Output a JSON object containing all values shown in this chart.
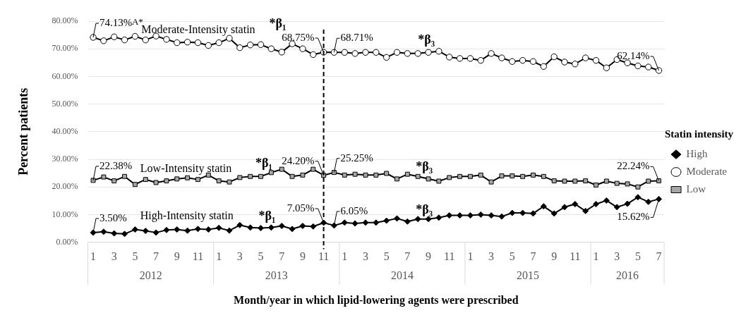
{
  "chart_data": {
    "type": "line",
    "xlabel": "Month/year in which lipid-lowering agents were prescribed",
    "ylabel": "Percent patients",
    "legend_title": "Statin intensity",
    "x": [
      "2012-01",
      "2012-02",
      "2012-03",
      "2012-04",
      "2012-05",
      "2012-06",
      "2012-07",
      "2012-08",
      "2012-09",
      "2012-10",
      "2012-11",
      "2012-12",
      "2013-01",
      "2013-02",
      "2013-03",
      "2013-04",
      "2013-05",
      "2013-06",
      "2013-07",
      "2013-08",
      "2013-09",
      "2013-10",
      "2013-11",
      "2013-12",
      "2014-01",
      "2014-02",
      "2014-03",
      "2014-04",
      "2014-05",
      "2014-06",
      "2014-07",
      "2014-08",
      "2014-09",
      "2014-10",
      "2014-11",
      "2014-12",
      "2015-01",
      "2015-02",
      "2015-03",
      "2015-04",
      "2015-05",
      "2015-06",
      "2015-07",
      "2015-08",
      "2015-09",
      "2015-10",
      "2015-11",
      "2015-12",
      "2016-01",
      "2016-02",
      "2016-03",
      "2016-04",
      "2016-05",
      "2016-06",
      "2016-07"
    ],
    "xlim": [
      "2011-12-16",
      "2016-07-16"
    ],
    "xticks": [
      {
        "value": "2012-01",
        "label": "1"
      },
      {
        "value": "2012-03",
        "label": "3"
      },
      {
        "value": "2012-05",
        "label": "5"
      },
      {
        "value": "2012-07",
        "label": "7"
      },
      {
        "value": "2012-09",
        "label": "9"
      },
      {
        "value": "2012-11",
        "label": "11"
      },
      {
        "value": "2013-01",
        "label": "1"
      },
      {
        "value": "2013-03",
        "label": "3"
      },
      {
        "value": "2013-05",
        "label": "5"
      },
      {
        "value": "2013-07",
        "label": "7"
      },
      {
        "value": "2013-09",
        "label": "9"
      },
      {
        "value": "2013-11",
        "label": "11"
      },
      {
        "value": "2014-01",
        "label": "1"
      },
      {
        "value": "2014-03",
        "label": "3"
      },
      {
        "value": "2014-05",
        "label": "5"
      },
      {
        "value": "2014-07",
        "label": "7"
      },
      {
        "value": "2014-09",
        "label": "9"
      },
      {
        "value": "2014-11",
        "label": "11"
      },
      {
        "value": "2015-01",
        "label": "1"
      },
      {
        "value": "2015-03",
        "label": "3"
      },
      {
        "value": "2015-05",
        "label": "5"
      },
      {
        "value": "2015-07",
        "label": "7"
      },
      {
        "value": "2015-09",
        "label": "9"
      },
      {
        "value": "2015-11",
        "label": "11"
      },
      {
        "value": "2016-01",
        "label": "1"
      },
      {
        "value": "2016-03",
        "label": "3"
      },
      {
        "value": "2016-05",
        "label": "5"
      },
      {
        "value": "2016-07",
        "label": "7"
      }
    ],
    "ylim": [
      0,
      80
    ],
    "yticks": [
      {
        "value": 0,
        "label": "0.00%"
      },
      {
        "value": 10,
        "label": "10.00%"
      },
      {
        "value": 20,
        "label": "20.00%"
      },
      {
        "value": 30,
        "label": "30.00%"
      },
      {
        "value": 40,
        "label": "40.00%"
      },
      {
        "value": 50,
        "label": "50.00%"
      },
      {
        "value": 60,
        "label": "60.00%"
      },
      {
        "value": 70,
        "label": "70.00%"
      },
      {
        "value": 80,
        "label": "80.00%"
      }
    ],
    "grid": "y",
    "legend": "right",
    "series": [
      {
        "name": "High",
        "color": "#000000",
        "marker": "diamond",
        "values": [
          3.5,
          3.8,
          3.2,
          3.0,
          4.6,
          4.1,
          3.5,
          4.4,
          4.6,
          4.2,
          4.8,
          4.6,
          5.2,
          4.2,
          6.2,
          5.3,
          5.1,
          5.3,
          5.9,
          4.8,
          5.9,
          5.7,
          7.05,
          6.05,
          7.1,
          6.8,
          7.1,
          7.1,
          7.8,
          8.6,
          7.5,
          8.4,
          8.4,
          8.9,
          9.7,
          9.7,
          9.7,
          10.0,
          9.7,
          9.3,
          10.6,
          10.6,
          10.4,
          13.0,
          10.4,
          12.7,
          13.8,
          11.3,
          13.8,
          15.1,
          12.7,
          13.9,
          16.3,
          14.6,
          15.62
        ],
        "value_labels": [
          "3.50%",
          null,
          null,
          null,
          null,
          null,
          null,
          null,
          null,
          null,
          null,
          null,
          null,
          null,
          null,
          null,
          null,
          null,
          null,
          null,
          null,
          null,
          "7.05%",
          "6.05%",
          null,
          null,
          null,
          null,
          null,
          null,
          null,
          null,
          null,
          null,
          null,
          null,
          null,
          null,
          null,
          null,
          null,
          null,
          null,
          null,
          null,
          null,
          null,
          null,
          null,
          null,
          null,
          null,
          null,
          null,
          "15.62%"
        ]
      },
      {
        "name": "Moderate",
        "color": "#ffffff",
        "marker": "circle",
        "values": [
          74.13,
          72.9,
          74.3,
          73.2,
          74.5,
          73.2,
          74.6,
          73.4,
          72.2,
          72.4,
          72.2,
          71.2,
          72.2,
          73.8,
          70.4,
          71.4,
          71.5,
          70.0,
          68.8,
          71.8,
          70.0,
          67.9,
          68.75,
          68.71,
          68.7,
          68.3,
          68.7,
          68.7,
          66.9,
          68.7,
          68.3,
          68.3,
          68.7,
          69.1,
          67.0,
          66.5,
          66.5,
          65.8,
          68.3,
          66.7,
          65.4,
          65.8,
          65.4,
          63.6,
          67.1,
          65.2,
          64.5,
          66.7,
          65.8,
          63.1,
          66.1,
          64.9,
          63.8,
          63.4,
          62.14
        ],
        "value_labels": [
          "74.13%",
          null,
          null,
          null,
          null,
          null,
          null,
          null,
          null,
          null,
          null,
          null,
          null,
          null,
          null,
          null,
          null,
          null,
          null,
          null,
          null,
          null,
          "68.75%",
          "68.71%",
          null,
          null,
          null,
          null,
          null,
          null,
          null,
          null,
          null,
          null,
          null,
          null,
          null,
          null,
          null,
          null,
          null,
          null,
          null,
          null,
          null,
          null,
          null,
          null,
          null,
          null,
          null,
          null,
          null,
          null,
          "62.14%"
        ]
      },
      {
        "name": "Low",
        "color": "#a6a6a6",
        "marker": "square",
        "values": [
          22.38,
          23.6,
          22.2,
          23.8,
          20.9,
          22.7,
          21.6,
          22.2,
          22.9,
          23.3,
          22.7,
          24.3,
          22.2,
          21.8,
          23.4,
          23.8,
          23.8,
          25.2,
          26.4,
          23.8,
          24.3,
          26.4,
          24.2,
          25.25,
          24.3,
          24.6,
          24.3,
          24.3,
          24.9,
          22.9,
          24.6,
          23.8,
          22.9,
          22.1,
          23.4,
          23.8,
          23.8,
          24.3,
          21.8,
          24.0,
          24.0,
          23.8,
          24.3,
          23.8,
          22.2,
          22.1,
          22.1,
          22.2,
          20.7,
          22.1,
          21.3,
          21.1,
          20.0,
          22.1,
          22.24
        ],
        "value_labels": [
          "22.38%",
          null,
          null,
          null,
          null,
          null,
          null,
          null,
          null,
          null,
          null,
          null,
          null,
          null,
          null,
          null,
          null,
          null,
          null,
          null,
          null,
          null,
          "24.20%",
          "25.25%",
          null,
          null,
          null,
          null,
          null,
          null,
          null,
          null,
          null,
          null,
          null,
          null,
          null,
          null,
          null,
          null,
          null,
          null,
          null,
          null,
          null,
          null,
          null,
          null,
          null,
          null,
          null,
          null,
          null,
          null,
          "22.24%"
        ]
      }
    ],
    "ref_lines": [
      {
        "axis": "x",
        "value": "2013-11",
        "line_style": "dashed",
        "color": "#000000"
      }
    ],
    "annotations": [
      "A*",
      "Moderate-Intensity statin",
      "*β₁",
      "*β₃",
      "Low-Intensity statin",
      "*β₁",
      "*β₃",
      "High-Intensity statin",
      "*β₁",
      "*β₃",
      "2012",
      "2013",
      "2014",
      "2015",
      "2016"
    ]
  }
}
